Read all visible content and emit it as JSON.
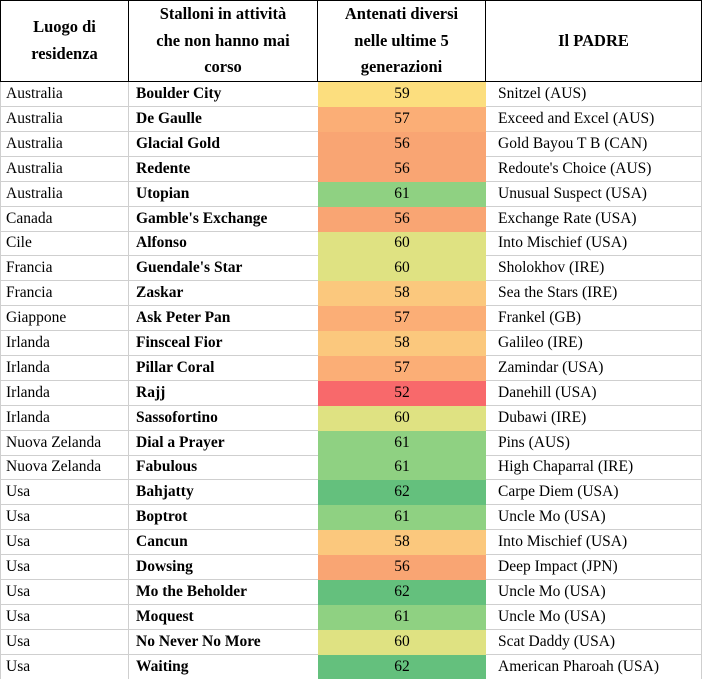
{
  "chart_data": {
    "type": "table",
    "title": "",
    "columns": [
      "Luogo di\nresidenza",
      "Stalloni in attività\nche non hanno mai\ncorso",
      "Antenati diversi\nnelle ultime 5\ngenerazioni",
      "Il PADRE"
    ],
    "rows": [
      [
        "Australia",
        "Boulder City",
        "59",
        "Snitzel (AUS)"
      ],
      [
        "Australia",
        "De Gaulle",
        "57",
        "Exceed and Excel (AUS)"
      ],
      [
        "Australia",
        "Glacial Gold",
        "56",
        "Gold Bayou T B (CAN)"
      ],
      [
        "Australia",
        "Redente",
        "56",
        "Redoute's Choice (AUS)"
      ],
      [
        "Australia",
        "Utopian",
        "61",
        "Unusual Suspect (USA)"
      ],
      [
        "Canada",
        "Gamble's Exchange",
        "56",
        "Exchange Rate (USA)"
      ],
      [
        "Cile",
        "Alfonso",
        "60",
        "Into Mischief (USA)"
      ],
      [
        "Francia",
        "Guendale's Star",
        "60",
        "Sholokhov (IRE)"
      ],
      [
        "Francia",
        "Zaskar",
        "58",
        "Sea the Stars (IRE)"
      ],
      [
        "Giappone",
        "Ask Peter Pan",
        "57",
        "Frankel (GB)"
      ],
      [
        "Irlanda",
        "Finsceal Fior",
        "58",
        "Galileo (IRE)"
      ],
      [
        "Irlanda",
        "Pillar Coral",
        "57",
        "Zamindar (USA)"
      ],
      [
        "Irlanda",
        "Rajj",
        "52",
        "Danehill (USA)"
      ],
      [
        "Irlanda",
        "Sassofortino",
        "60",
        "Dubawi (IRE)"
      ],
      [
        "Nuova Zelanda",
        "Dial a Prayer",
        "61",
        "Pins (AUS)"
      ],
      [
        "Nuova Zelanda",
        "Fabulous",
        "61",
        "High Chaparral (IRE)"
      ],
      [
        "Usa",
        "Bahjatty",
        "62",
        "Carpe Diem (USA)"
      ],
      [
        "Usa",
        "Boptrot",
        "61",
        "Uncle Mo (USA)"
      ],
      [
        "Usa",
        "Cancun",
        "58",
        "Into Mischief (USA)"
      ],
      [
        "Usa",
        "Dowsing",
        "56",
        "Deep Impact (JPN)"
      ],
      [
        "Usa",
        "Mo the Beholder",
        "62",
        "Uncle Mo (USA)"
      ],
      [
        "Usa",
        "Moquest",
        "61",
        "Uncle Mo (USA)"
      ],
      [
        "Usa",
        "No Never No More",
        "60",
        "Scat Daddy (USA)"
      ],
      [
        "Usa",
        "Waiting",
        "62",
        "American Pharoah (USA)"
      ]
    ],
    "color_scale": {
      "52": "#F8696B",
      "56": "#F9A573",
      "57": "#FBAE76",
      "58": "#FBC87D",
      "59": "#FCDE7E",
      "60": "#DFE282",
      "61": "#8FD182",
      "62": "#64C07D"
    },
    "layout": {
      "conditional_format": "3-color scale on 'Antenati diversi' column: low=red, mid=yellow, high=green",
      "header_border": "#000000",
      "grid_color": "#cfcfcf",
      "value_range_observed": [
        52,
        62
      ]
    }
  }
}
